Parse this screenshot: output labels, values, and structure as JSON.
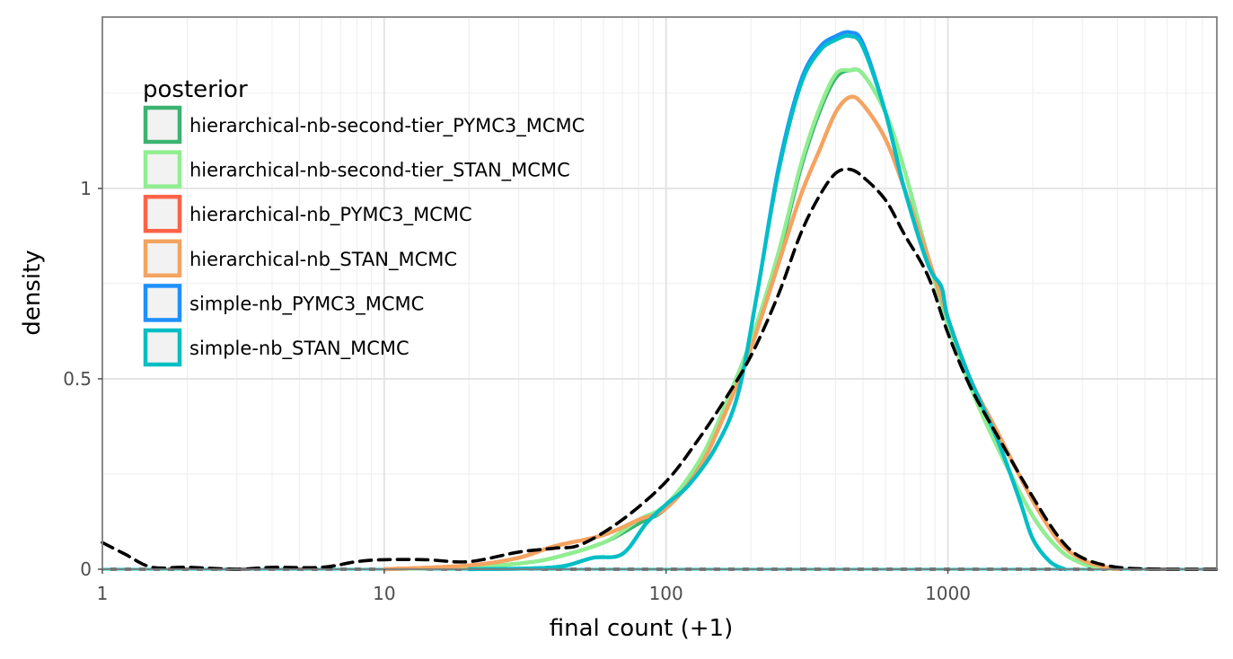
{
  "chart_data": {
    "type": "line",
    "title": "",
    "xlabel": "final count (+1)",
    "ylabel": "density",
    "x_scale": "log10",
    "xlim": [
      1,
      9000
    ],
    "ylim": [
      0,
      1.45
    ],
    "x_ticks": [
      {
        "value": 1,
        "label": "1"
      },
      {
        "value": 10,
        "label": "10"
      },
      {
        "value": 100,
        "label": "100"
      },
      {
        "value": 1000,
        "label": "1000"
      }
    ],
    "y_ticks": [
      {
        "value": 0,
        "label": "0"
      },
      {
        "value": 0.5,
        "label": "0.5"
      },
      {
        "value": 1,
        "label": "1"
      }
    ],
    "grid": true,
    "legend": {
      "title": "posterior",
      "placement": "top-left"
    },
    "series": [
      {
        "name": "hierarchical-nb-second-tier_PYMC3_MCMC",
        "color": "#3CB371",
        "style": "solid",
        "points": [
          [
            10,
            0
          ],
          [
            20,
            0.005
          ],
          [
            30,
            0.015
          ],
          [
            40,
            0.03
          ],
          [
            60,
            0.07
          ],
          [
            80,
            0.12
          ],
          [
            100,
            0.16
          ],
          [
            130,
            0.27
          ],
          [
            160,
            0.42
          ],
          [
            200,
            0.6
          ],
          [
            250,
            0.82
          ],
          [
            300,
            1.05
          ],
          [
            350,
            1.2
          ],
          [
            400,
            1.29
          ],
          [
            450,
            1.31
          ],
          [
            500,
            1.3
          ],
          [
            600,
            1.2
          ],
          [
            700,
            1.05
          ],
          [
            850,
            0.82
          ],
          [
            1000,
            0.64
          ],
          [
            1200,
            0.48
          ],
          [
            1500,
            0.32
          ],
          [
            2000,
            0.14
          ],
          [
            2500,
            0.05
          ],
          [
            3000,
            0.015
          ],
          [
            3500,
            0.004
          ],
          [
            4000,
            0
          ]
        ]
      },
      {
        "name": "hierarchical-nb-second-tier_STAN_MCMC",
        "color": "#90EE90",
        "style": "solid",
        "points": [
          [
            10,
            0
          ],
          [
            20,
            0.005
          ],
          [
            30,
            0.015
          ],
          [
            40,
            0.03
          ],
          [
            60,
            0.07
          ],
          [
            80,
            0.13
          ],
          [
            100,
            0.17
          ],
          [
            130,
            0.28
          ],
          [
            160,
            0.42
          ],
          [
            200,
            0.6
          ],
          [
            250,
            0.83
          ],
          [
            300,
            1.06
          ],
          [
            350,
            1.21
          ],
          [
            400,
            1.3
          ],
          [
            450,
            1.31
          ],
          [
            500,
            1.3
          ],
          [
            600,
            1.2
          ],
          [
            700,
            1.05
          ],
          [
            850,
            0.82
          ],
          [
            1000,
            0.64
          ],
          [
            1200,
            0.48
          ],
          [
            1500,
            0.32
          ],
          [
            2000,
            0.14
          ],
          [
            2500,
            0.05
          ],
          [
            3000,
            0.015
          ],
          [
            3500,
            0.004
          ],
          [
            4000,
            0
          ]
        ]
      },
      {
        "name": "hierarchical-nb_PYMC3_MCMC",
        "color": "#FF6347",
        "style": "solid",
        "points": [
          [
            10,
            0
          ],
          [
            20,
            0.01
          ],
          [
            30,
            0.03
          ],
          [
            40,
            0.06
          ],
          [
            60,
            0.09
          ],
          [
            80,
            0.13
          ],
          [
            100,
            0.16
          ],
          [
            130,
            0.26
          ],
          [
            160,
            0.4
          ],
          [
            200,
            0.58
          ],
          [
            250,
            0.8
          ],
          [
            300,
            0.98
          ],
          [
            350,
            1.1
          ],
          [
            400,
            1.2
          ],
          [
            450,
            1.24
          ],
          [
            500,
            1.22
          ],
          [
            600,
            1.13
          ],
          [
            700,
            1.0
          ],
          [
            850,
            0.82
          ],
          [
            1000,
            0.66
          ],
          [
            1200,
            0.5
          ],
          [
            1500,
            0.36
          ],
          [
            2000,
            0.18
          ],
          [
            2500,
            0.07
          ],
          [
            3000,
            0.025
          ],
          [
            3500,
            0.008
          ],
          [
            4000,
            0
          ]
        ]
      },
      {
        "name": "hierarchical-nb_STAN_MCMC",
        "color": "#F4A460",
        "style": "solid",
        "points": [
          [
            10,
            0
          ],
          [
            20,
            0.01
          ],
          [
            30,
            0.03
          ],
          [
            40,
            0.06
          ],
          [
            60,
            0.09
          ],
          [
            80,
            0.13
          ],
          [
            100,
            0.16
          ],
          [
            130,
            0.26
          ],
          [
            160,
            0.4
          ],
          [
            200,
            0.58
          ],
          [
            250,
            0.8
          ],
          [
            300,
            0.98
          ],
          [
            350,
            1.1
          ],
          [
            400,
            1.2
          ],
          [
            450,
            1.24
          ],
          [
            500,
            1.22
          ],
          [
            600,
            1.13
          ],
          [
            700,
            1.0
          ],
          [
            850,
            0.82
          ],
          [
            1000,
            0.66
          ],
          [
            1200,
            0.5
          ],
          [
            1500,
            0.36
          ],
          [
            2000,
            0.18
          ],
          [
            2500,
            0.07
          ],
          [
            3000,
            0.025
          ],
          [
            3500,
            0.008
          ],
          [
            4000,
            0
          ]
        ]
      },
      {
        "name": "simple-nb_PYMC3_MCMC",
        "color": "#1E90FF",
        "style": "solid",
        "points": [
          [
            20,
            0
          ],
          [
            40,
            0.005
          ],
          [
            55,
            0.03
          ],
          [
            70,
            0.04
          ],
          [
            85,
            0.12
          ],
          [
            100,
            0.17
          ],
          [
            120,
            0.22
          ],
          [
            150,
            0.32
          ],
          [
            180,
            0.46
          ],
          [
            210,
            0.72
          ],
          [
            250,
            1.05
          ],
          [
            300,
            1.28
          ],
          [
            350,
            1.37
          ],
          [
            400,
            1.4
          ],
          [
            450,
            1.41
          ],
          [
            500,
            1.38
          ],
          [
            600,
            1.2
          ],
          [
            700,
            1.0
          ],
          [
            850,
            0.8
          ],
          [
            950,
            0.74
          ],
          [
            1000,
            0.66
          ],
          [
            1200,
            0.5
          ],
          [
            1500,
            0.34
          ],
          [
            1800,
            0.18
          ],
          [
            2000,
            0.08
          ],
          [
            2300,
            0.02
          ],
          [
            2600,
            0
          ]
        ]
      },
      {
        "name": "simple-nb_STAN_MCMC",
        "color": "#00BFC4",
        "style": "solid",
        "points": [
          [
            20,
            0
          ],
          [
            40,
            0.005
          ],
          [
            55,
            0.03
          ],
          [
            70,
            0.04
          ],
          [
            85,
            0.12
          ],
          [
            100,
            0.17
          ],
          [
            120,
            0.22
          ],
          [
            150,
            0.32
          ],
          [
            180,
            0.46
          ],
          [
            210,
            0.72
          ],
          [
            250,
            1.04
          ],
          [
            300,
            1.27
          ],
          [
            350,
            1.36
          ],
          [
            400,
            1.39
          ],
          [
            450,
            1.4
          ],
          [
            500,
            1.37
          ],
          [
            600,
            1.2
          ],
          [
            700,
            1.0
          ],
          [
            850,
            0.8
          ],
          [
            950,
            0.74
          ],
          [
            1000,
            0.66
          ],
          [
            1200,
            0.5
          ],
          [
            1500,
            0.34
          ],
          [
            1800,
            0.18
          ],
          [
            2000,
            0.08
          ],
          [
            2300,
            0.02
          ],
          [
            2600,
            0
          ]
        ]
      },
      {
        "name": "",
        "color": "#000000",
        "style": "dashed",
        "points": [
          [
            1,
            0.07
          ],
          [
            1.2,
            0.04
          ],
          [
            1.5,
            0.005
          ],
          [
            2,
            0.005
          ],
          [
            3,
            0
          ],
          [
            4,
            0.005
          ],
          [
            6,
            0.005
          ],
          [
            8,
            0.02
          ],
          [
            10,
            0.025
          ],
          [
            14,
            0.025
          ],
          [
            20,
            0.02
          ],
          [
            30,
            0.045
          ],
          [
            40,
            0.055
          ],
          [
            50,
            0.065
          ],
          [
            70,
            0.13
          ],
          [
            100,
            0.23
          ],
          [
            130,
            0.34
          ],
          [
            160,
            0.44
          ],
          [
            200,
            0.56
          ],
          [
            250,
            0.72
          ],
          [
            300,
            0.88
          ],
          [
            350,
            0.98
          ],
          [
            400,
            1.04
          ],
          [
            450,
            1.05
          ],
          [
            500,
            1.03
          ],
          [
            600,
            0.97
          ],
          [
            700,
            0.88
          ],
          [
            850,
            0.77
          ],
          [
            1000,
            0.62
          ],
          [
            1200,
            0.48
          ],
          [
            1500,
            0.35
          ],
          [
            2000,
            0.19
          ],
          [
            2500,
            0.08
          ],
          [
            3000,
            0.03
          ],
          [
            4000,
            0.005
          ],
          [
            6000,
            0
          ],
          [
            9000,
            0
          ]
        ]
      }
    ],
    "baselines": [
      {
        "color": "#000000",
        "style": "solid",
        "y": 0
      },
      {
        "color": "#00BFC4",
        "style": "dashed",
        "y": 0
      }
    ]
  }
}
